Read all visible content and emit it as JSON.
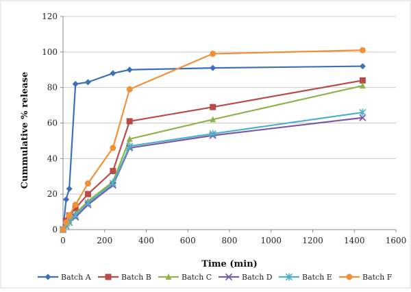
{
  "chart_data": {
    "type": "line",
    "xlabel": "Time (min)",
    "ylabel": "Cummulative % release",
    "xlim": [
      0,
      1600
    ],
    "ylim": [
      0,
      120
    ],
    "xticks": [
      0,
      200,
      400,
      600,
      800,
      1000,
      1200,
      1400,
      1600
    ],
    "yticks": [
      0,
      20,
      40,
      60,
      80,
      100,
      120
    ],
    "grid": "horizontal",
    "legend": "bottom",
    "x": [
      0,
      15,
      30,
      60,
      120,
      240,
      320,
      720,
      1440
    ],
    "series": [
      {
        "name": "Batch A",
        "color": "#3b6fb6",
        "marker": "diamond",
        "values": [
          0,
          17,
          23,
          82,
          83,
          88,
          90,
          91,
          92
        ]
      },
      {
        "name": "Batch B",
        "color": "#b84a4a",
        "marker": "square",
        "values": [
          0,
          5,
          8,
          12,
          20,
          33,
          61,
          69,
          84
        ]
      },
      {
        "name": "Batch C",
        "color": "#8fb24a",
        "marker": "triangle",
        "values": [
          0,
          3,
          5,
          9,
          16,
          27,
          51,
          62,
          81
        ]
      },
      {
        "name": "Batch D",
        "color": "#7a5aa8",
        "marker": "x",
        "values": [
          0,
          2,
          4,
          7,
          14,
          25,
          46,
          53,
          63
        ]
      },
      {
        "name": "Batch E",
        "color": "#4bb0c8",
        "marker": "star",
        "values": [
          0,
          2,
          4,
          8,
          15,
          26,
          47,
          54,
          66
        ]
      },
      {
        "name": "Batch F",
        "color": "#f0913a",
        "marker": "circle",
        "values": [
          0,
          4,
          8,
          14,
          26,
          46,
          79,
          99,
          101
        ]
      }
    ]
  }
}
